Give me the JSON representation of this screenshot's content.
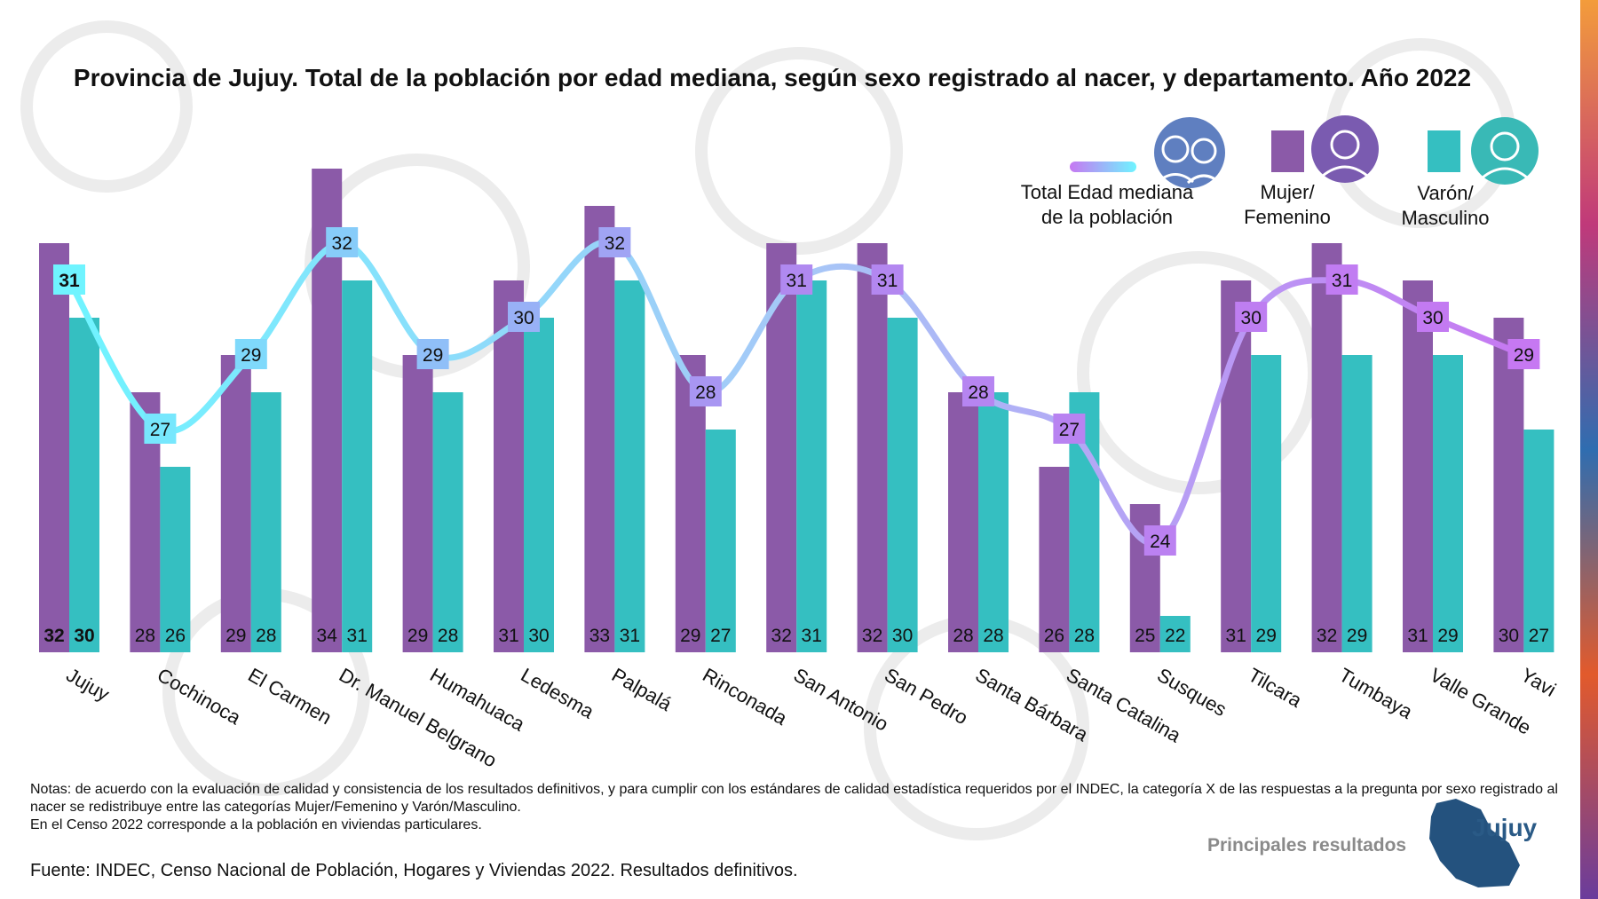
{
  "title": "Provincia de Jujuy. Total de la población por edad mediana, según sexo registrado al nacer, y departamento. Año 2022",
  "legend": {
    "total": {
      "line1": "Total Edad mediana",
      "line2": "de la población",
      "icon": "couple-avatar-icon"
    },
    "mujer": {
      "line1": "Mujer/",
      "line2": "Femenino",
      "color": "#8b5aa8",
      "icon": "woman-avatar-icon"
    },
    "varon": {
      "line1": "Varón/",
      "line2": "Masculino",
      "color": "#35bfc1",
      "icon": "man-avatar-icon"
    }
  },
  "chart_data": {
    "type": "bar",
    "title": "Provincia de Jujuy. Total de la población por edad mediana, según sexo registrado al nacer, y departamento. Año 2022",
    "categories": [
      "Jujuy",
      "Cochinoca",
      "El Carmen",
      "Dr. Manuel Belgrano",
      "Humahuaca",
      "Ledesma",
      "Palpalá",
      "Rinconada",
      "San Antonio",
      "San Pedro",
      "Santa Bárbara",
      "Santa Catalina",
      "Susques",
      "Tilcara",
      "Tumbaya",
      "Valle Grande",
      "Yavi"
    ],
    "series": [
      {
        "name": "Mujer/Femenino",
        "type": "bar",
        "color": "#8b5aa8",
        "values": [
          32,
          28,
          29,
          34,
          29,
          31,
          33,
          29,
          32,
          32,
          28,
          26,
          25,
          31,
          32,
          31,
          30
        ]
      },
      {
        "name": "Varón/Masculino",
        "type": "bar",
        "color": "#35bfc1",
        "values": [
          30,
          26,
          28,
          31,
          28,
          30,
          31,
          27,
          31,
          30,
          28,
          28,
          22,
          29,
          29,
          29,
          27
        ]
      },
      {
        "name": "Total Edad mediana de la población",
        "type": "line",
        "values": [
          31,
          27,
          29,
          32,
          29,
          30,
          32,
          28,
          31,
          31,
          28,
          27,
          24,
          30,
          31,
          30,
          29
        ]
      }
    ],
    "ylim": [
      20,
      36
    ],
    "xlabel": "",
    "ylabel": "",
    "line_gradient": [
      "#6ff4ff",
      "#b089f0",
      "#c678f2"
    ]
  },
  "notes": {
    "line1": "Notas: de acuerdo con la evaluación de calidad y consistencia de los resultados definitivos, y para cumplir con los estándares de calidad estadística requeridos por el INDEC, la categoría X de las respuestas a la pregunta por sexo registrado al nacer se redistribuye entre las categorías Mujer/Femenino y Varón/Masculino.",
    "line2": "En el Censo 2022 corresponde a la población en viviendas particulares."
  },
  "source": "Fuente: INDEC, Censo Nacional de Población, Hogares y Viviendas 2022. Resultados definitivos.",
  "footer": {
    "principales": "Principales resultados",
    "brand": "Jujuy"
  }
}
